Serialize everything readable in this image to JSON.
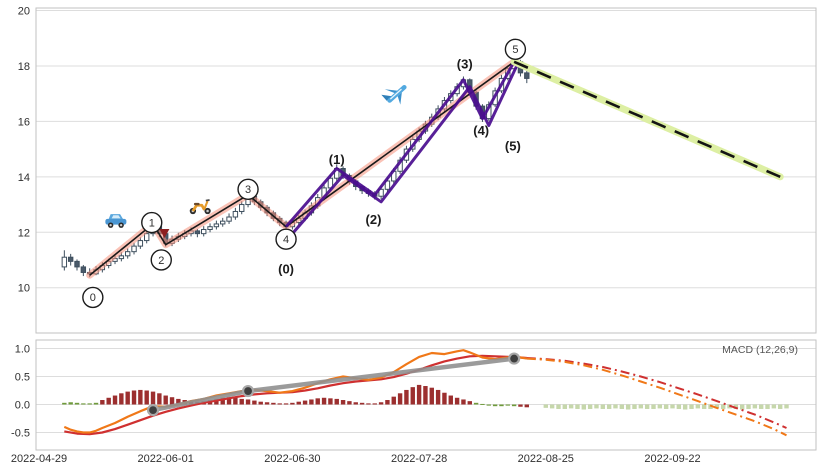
{
  "colors": {
    "background": "#ffffff",
    "grid": "#dddddd",
    "panel_border": "#c2c2c2",
    "axis_text": "#2f2f2f",
    "candle_up_fill": "#ffffff",
    "candle_down_fill": "#4a5a6a",
    "candle_stroke": "#3e4f5e",
    "wave_line_under": "#f5907a",
    "wave_line_over": "#1a1a1a",
    "impulse_purple": "#4a0d8f",
    "forecast_under": "#ddefa3",
    "forecast_dash": "#141414",
    "macd_line": "#f07818",
    "signal_line": "#cf3030",
    "hist_red": "#9c2f2f",
    "hist_green": "#6f9a3c",
    "hist_faded_green": "#bcd09c",
    "trend_gray": "#909090",
    "marker_fill": "#3f3f3f",
    "marker_ring": "#a8a8a8",
    "sell_marker": "#8c1f1f"
  },
  "chart_data": {
    "type": "candlestick+macd",
    "title": "",
    "x_ticks": [
      {
        "i": 0,
        "label": "2022-04-29"
      },
      {
        "i": 20,
        "label": "2022-06-01"
      },
      {
        "i": 40,
        "label": "2022-06-30"
      },
      {
        "i": 60,
        "label": "2022-07-28"
      },
      {
        "i": 80,
        "label": "2022-08-25"
      },
      {
        "i": 100,
        "label": "2022-09-22"
      }
    ],
    "price_panel": {
      "y_ticks": [
        {
          "v": 20,
          "label": "20"
        },
        {
          "v": 18,
          "label": "18"
        },
        {
          "v": 16,
          "label": "16"
        },
        {
          "v": 14,
          "label": "14"
        },
        {
          "v": 12,
          "label": "12"
        },
        {
          "v": 10,
          "label": "10"
        }
      ],
      "ylim": [
        8.4,
        20.1
      ],
      "candle_start_index": 4,
      "candles_ohlc": [
        [
          10.75,
          11.35,
          10.62,
          11.1
        ],
        [
          11.1,
          11.22,
          10.8,
          10.95
        ],
        [
          10.95,
          11.02,
          10.62,
          10.75
        ],
        [
          10.75,
          10.82,
          10.42,
          10.55
        ],
        [
          10.55,
          10.7,
          10.38,
          10.5
        ],
        [
          10.5,
          10.78,
          10.45,
          10.65
        ],
        [
          10.65,
          10.92,
          10.55,
          10.8
        ],
        [
          10.8,
          11.05,
          10.7,
          10.95
        ],
        [
          10.95,
          11.18,
          10.85,
          11.05
        ],
        [
          11.05,
          11.28,
          10.95,
          11.15
        ],
        [
          11.15,
          11.42,
          11.05,
          11.3
        ],
        [
          11.3,
          11.62,
          11.2,
          11.5
        ],
        [
          11.5,
          11.82,
          11.4,
          11.7
        ],
        [
          11.7,
          12.08,
          11.6,
          11.95
        ],
        [
          11.95,
          12.4,
          11.85,
          12.25
        ],
        [
          12.25,
          12.32,
          11.82,
          11.95
        ],
        [
          11.95,
          12.02,
          11.48,
          11.6
        ],
        [
          11.6,
          11.88,
          11.5,
          11.75
        ],
        [
          11.75,
          11.98,
          11.65,
          11.85
        ],
        [
          11.85,
          12.08,
          11.75,
          11.95
        ],
        [
          11.95,
          12.18,
          11.85,
          12.05
        ],
        [
          12.05,
          12.12,
          11.82,
          11.95
        ],
        [
          11.95,
          12.22,
          11.85,
          12.1
        ],
        [
          12.1,
          12.32,
          12.0,
          12.2
        ],
        [
          12.2,
          12.42,
          12.1,
          12.3
        ],
        [
          12.3,
          12.52,
          12.2,
          12.4
        ],
        [
          12.4,
          12.68,
          12.3,
          12.55
        ],
        [
          12.55,
          12.88,
          12.45,
          12.75
        ],
        [
          12.75,
          13.12,
          12.65,
          13.0
        ],
        [
          13.0,
          13.45,
          12.9,
          13.3
        ],
        [
          13.3,
          13.38,
          12.98,
          13.1
        ],
        [
          13.1,
          13.18,
          12.78,
          12.9
        ],
        [
          12.9,
          12.98,
          12.58,
          12.7
        ],
        [
          12.7,
          12.78,
          12.4,
          12.5
        ],
        [
          12.5,
          12.58,
          12.22,
          12.35
        ],
        [
          12.35,
          12.42,
          12.05,
          12.2
        ],
        [
          12.2,
          12.48,
          12.1,
          12.35
        ],
        [
          12.35,
          12.62,
          12.25,
          12.5
        ],
        [
          12.5,
          12.82,
          12.4,
          12.7
        ],
        [
          12.7,
          13.08,
          12.6,
          12.95
        ],
        [
          12.95,
          13.38,
          12.85,
          13.25
        ],
        [
          13.25,
          13.72,
          13.15,
          13.6
        ],
        [
          13.6,
          14.08,
          13.5,
          13.95
        ],
        [
          13.95,
          14.45,
          13.85,
          14.3
        ],
        [
          14.3,
          14.38,
          13.92,
          14.05
        ],
        [
          14.05,
          14.12,
          13.72,
          13.85
        ],
        [
          13.85,
          13.92,
          13.52,
          13.65
        ],
        [
          13.65,
          13.72,
          13.38,
          13.5
        ],
        [
          13.5,
          13.58,
          13.28,
          13.4
        ],
        [
          13.4,
          13.48,
          13.18,
          13.3
        ],
        [
          13.3,
          13.68,
          13.2,
          13.55
        ],
        [
          13.55,
          13.98,
          13.45,
          13.85
        ],
        [
          13.85,
          14.32,
          13.75,
          14.2
        ],
        [
          14.2,
          14.72,
          14.1,
          14.6
        ],
        [
          14.6,
          15.12,
          14.5,
          15.0
        ],
        [
          15.0,
          15.48,
          14.9,
          15.35
        ],
        [
          15.35,
          15.78,
          15.25,
          15.65
        ],
        [
          15.65,
          16.02,
          15.55,
          15.9
        ],
        [
          15.9,
          16.28,
          15.8,
          16.15
        ],
        [
          16.15,
          16.58,
          16.05,
          16.45
        ],
        [
          16.45,
          16.88,
          16.35,
          16.75
        ],
        [
          16.75,
          17.12,
          16.65,
          17.0
        ],
        [
          17.0,
          17.38,
          16.9,
          17.25
        ],
        [
          17.25,
          17.62,
          17.15,
          17.5
        ],
        [
          17.5,
          17.55,
          16.92,
          17.05
        ],
        [
          17.05,
          17.12,
          16.42,
          16.55
        ],
        [
          16.55,
          16.62,
          15.98,
          16.1
        ],
        [
          16.1,
          16.72,
          16.02,
          16.6
        ],
        [
          16.6,
          17.22,
          16.52,
          17.1
        ],
        [
          17.1,
          17.68,
          17.02,
          17.55
        ],
        [
          17.55,
          18.02,
          17.48,
          17.9
        ],
        [
          17.9,
          18.3,
          17.82,
          18.15
        ],
        [
          18.15,
          18.22,
          17.62,
          17.75
        ],
        [
          17.75,
          17.82,
          17.38,
          17.55
        ]
      ],
      "wave_path": [
        [
          8,
          10.45
        ],
        [
          18,
          12.3
        ],
        [
          20,
          11.55
        ],
        [
          33,
          13.35
        ],
        [
          39,
          12.2
        ],
        [
          75,
          18.15
        ]
      ],
      "circled_wave_labels": [
        {
          "t": "0",
          "i": 8.5,
          "v": 9.65
        },
        {
          "t": "1",
          "i": 17.8,
          "v": 12.35
        },
        {
          "t": "2",
          "i": 19.3,
          "v": 11.0
        },
        {
          "t": "3",
          "i": 33.0,
          "v": 13.55
        },
        {
          "t": "4",
          "i": 39.0,
          "v": 11.75
        },
        {
          "t": "5",
          "i": 75.2,
          "v": 18.6
        }
      ],
      "impulse_path_1": [
        [
          39,
          12.2
        ],
        [
          47,
          14.3
        ],
        [
          53,
          13.35
        ],
        [
          67,
          17.5
        ],
        [
          70,
          16.1
        ],
        [
          75,
          18.15
        ]
      ],
      "impulse_path_2": [
        [
          40,
          11.95
        ],
        [
          48,
          14.05
        ],
        [
          54,
          13.1
        ],
        [
          68,
          17.25
        ],
        [
          71,
          15.85
        ],
        [
          75.4,
          18.0
        ]
      ],
      "sub_wave_labels": [
        {
          "t": "(0)",
          "i": 39.0,
          "v": 10.65
        },
        {
          "t": "(1)",
          "i": 47.0,
          "v": 14.6
        },
        {
          "t": "(2)",
          "i": 52.8,
          "v": 12.45
        },
        {
          "t": "(3)",
          "i": 67.2,
          "v": 18.05
        },
        {
          "t": "(4)",
          "i": 69.8,
          "v": 15.65
        },
        {
          "t": "(5)",
          "i": 74.8,
          "v": 15.1
        }
      ],
      "forecast_path": [
        [
          75,
          18.15
        ],
        [
          117,
          14.0
        ]
      ],
      "sell_marker": {
        "i": 19.8,
        "v": 11.9
      },
      "icons": [
        {
          "icon": "car",
          "i": 12.3,
          "v": 12.35
        },
        {
          "icon": "scooter",
          "i": 25.7,
          "v": 12.9
        },
        {
          "icon": "plane",
          "i": 56.5,
          "v": 17.1
        }
      ]
    },
    "macd_panel": {
      "label": "MACD (12,26,9)",
      "y_ticks": [
        {
          "v": 1.0,
          "label": "1.0"
        },
        {
          "v": 0.5,
          "label": "0.5"
        },
        {
          "v": 0.0,
          "label": "0.0"
        },
        {
          "v": -0.5,
          "label": "-0.5"
        }
      ],
      "hist_start_index": 4,
      "hist_values": [
        0.03,
        0.04,
        0.03,
        0.02,
        0.02,
        0.03,
        0.08,
        0.12,
        0.16,
        0.2,
        0.23,
        0.25,
        0.26,
        0.25,
        0.23,
        0.2,
        0.16,
        0.13,
        0.1,
        0.08,
        0.06,
        0.05,
        0.06,
        0.08,
        0.1,
        0.12,
        0.13,
        0.12,
        0.1,
        0.09,
        0.07,
        0.05,
        0.04,
        0.03,
        0.02,
        0.02,
        0.03,
        0.05,
        0.07,
        0.09,
        0.11,
        0.12,
        0.11,
        0.1,
        0.08,
        0.06,
        0.04,
        0.03,
        0.02,
        0.02,
        0.04,
        0.08,
        0.14,
        0.2,
        0.26,
        0.31,
        0.35,
        0.33,
        0.3,
        0.26,
        0.21,
        0.16,
        0.12,
        0.09,
        0.06,
        0.03,
        0.01,
        -0.02,
        -0.03,
        -0.03,
        -0.02,
        -0.03,
        -0.04,
        -0.05
      ],
      "hist_colors": "ggggggrrrrrrrrrrrrrrrrrrrrrrrrrrrrrrrrrrrrrrrrrrrrrrrrrrrrrrrrrrrggggggg",
      "hist_forecast_start_index": 80,
      "hist_forecast_values": [
        -0.06,
        -0.07,
        -0.08,
        -0.08,
        -0.07,
        -0.08,
        -0.09,
        -0.08,
        -0.07,
        -0.08,
        -0.08,
        -0.07,
        -0.08,
        -0.09,
        -0.08,
        -0.07,
        -0.08,
        -0.08,
        -0.07,
        -0.08,
        -0.07,
        -0.08,
        -0.09,
        -0.08,
        -0.07,
        -0.08,
        -0.08,
        -0.07,
        -0.08,
        -0.07,
        -0.08,
        -0.09,
        -0.08,
        -0.07,
        -0.08,
        -0.08,
        -0.07,
        -0.08,
        -0.07
      ],
      "macd_line": [
        [
          4,
          -0.4
        ],
        [
          5,
          -0.45
        ],
        [
          6,
          -0.48
        ],
        [
          7,
          -0.5
        ],
        [
          8,
          -0.5
        ],
        [
          9,
          -0.47
        ],
        [
          10,
          -0.42
        ],
        [
          12,
          -0.33
        ],
        [
          14,
          -0.22
        ],
        [
          16,
          -0.12
        ],
        [
          18,
          -0.03
        ],
        [
          20,
          -0.04
        ],
        [
          22,
          0.0
        ],
        [
          24,
          0.06
        ],
        [
          26,
          0.1
        ],
        [
          28,
          0.16
        ],
        [
          30,
          0.2
        ],
        [
          32,
          0.24
        ],
        [
          34,
          0.26
        ],
        [
          36,
          0.24
        ],
        [
          38,
          0.21
        ],
        [
          40,
          0.24
        ],
        [
          42,
          0.3
        ],
        [
          44,
          0.38
        ],
        [
          46,
          0.45
        ],
        [
          48,
          0.5
        ],
        [
          50,
          0.47
        ],
        [
          52,
          0.44
        ],
        [
          54,
          0.48
        ],
        [
          56,
          0.58
        ],
        [
          58,
          0.72
        ],
        [
          60,
          0.85
        ],
        [
          62,
          0.92
        ],
        [
          64,
          0.9
        ],
        [
          66,
          0.95
        ],
        [
          67,
          0.97
        ],
        [
          68,
          0.93
        ],
        [
          70,
          0.84
        ],
        [
          72,
          0.81
        ],
        [
          74,
          0.84
        ],
        [
          76,
          0.84
        ],
        [
          77,
          0.82
        ]
      ],
      "macd_line_forecast": [
        [
          77,
          0.82
        ],
        [
          80,
          0.8
        ],
        [
          83,
          0.76
        ],
        [
          86,
          0.7
        ],
        [
          89,
          0.62
        ],
        [
          92,
          0.52
        ],
        [
          95,
          0.41
        ],
        [
          98,
          0.3
        ],
        [
          101,
          0.18
        ],
        [
          104,
          0.06
        ],
        [
          107,
          -0.06
        ],
        [
          110,
          -0.18
        ],
        [
          113,
          -0.3
        ],
        [
          116,
          -0.44
        ],
        [
          118,
          -0.55
        ]
      ],
      "signal_line": [
        [
          4,
          -0.48
        ],
        [
          6,
          -0.52
        ],
        [
          8,
          -0.53
        ],
        [
          10,
          -0.5
        ],
        [
          12,
          -0.44
        ],
        [
          14,
          -0.36
        ],
        [
          16,
          -0.28
        ],
        [
          18,
          -0.2
        ],
        [
          20,
          -0.13
        ],
        [
          22,
          -0.07
        ],
        [
          24,
          -0.02
        ],
        [
          26,
          0.03
        ],
        [
          28,
          0.07
        ],
        [
          30,
          0.11
        ],
        [
          32,
          0.15
        ],
        [
          34,
          0.18
        ],
        [
          36,
          0.2
        ],
        [
          38,
          0.21
        ],
        [
          40,
          0.22
        ],
        [
          42,
          0.25
        ],
        [
          44,
          0.29
        ],
        [
          46,
          0.34
        ],
        [
          48,
          0.38
        ],
        [
          50,
          0.41
        ],
        [
          52,
          0.43
        ],
        [
          54,
          0.45
        ],
        [
          56,
          0.49
        ],
        [
          58,
          0.55
        ],
        [
          60,
          0.62
        ],
        [
          62,
          0.7
        ],
        [
          64,
          0.77
        ],
        [
          66,
          0.82
        ],
        [
          68,
          0.86
        ],
        [
          70,
          0.87
        ],
        [
          72,
          0.86
        ],
        [
          74,
          0.85
        ],
        [
          76,
          0.84
        ],
        [
          77,
          0.83
        ]
      ],
      "signal_line_forecast": [
        [
          77,
          0.83
        ],
        [
          80,
          0.81
        ],
        [
          83,
          0.78
        ],
        [
          86,
          0.73
        ],
        [
          89,
          0.67
        ],
        [
          92,
          0.59
        ],
        [
          95,
          0.5
        ],
        [
          98,
          0.4
        ],
        [
          101,
          0.29
        ],
        [
          104,
          0.18
        ],
        [
          107,
          0.06
        ],
        [
          110,
          -0.06
        ],
        [
          113,
          -0.18
        ],
        [
          116,
          -0.32
        ],
        [
          118,
          -0.42
        ]
      ],
      "trend_markers": [
        [
          18,
          -0.1
        ],
        [
          33,
          0.24
        ],
        [
          75,
          0.82
        ]
      ]
    }
  }
}
